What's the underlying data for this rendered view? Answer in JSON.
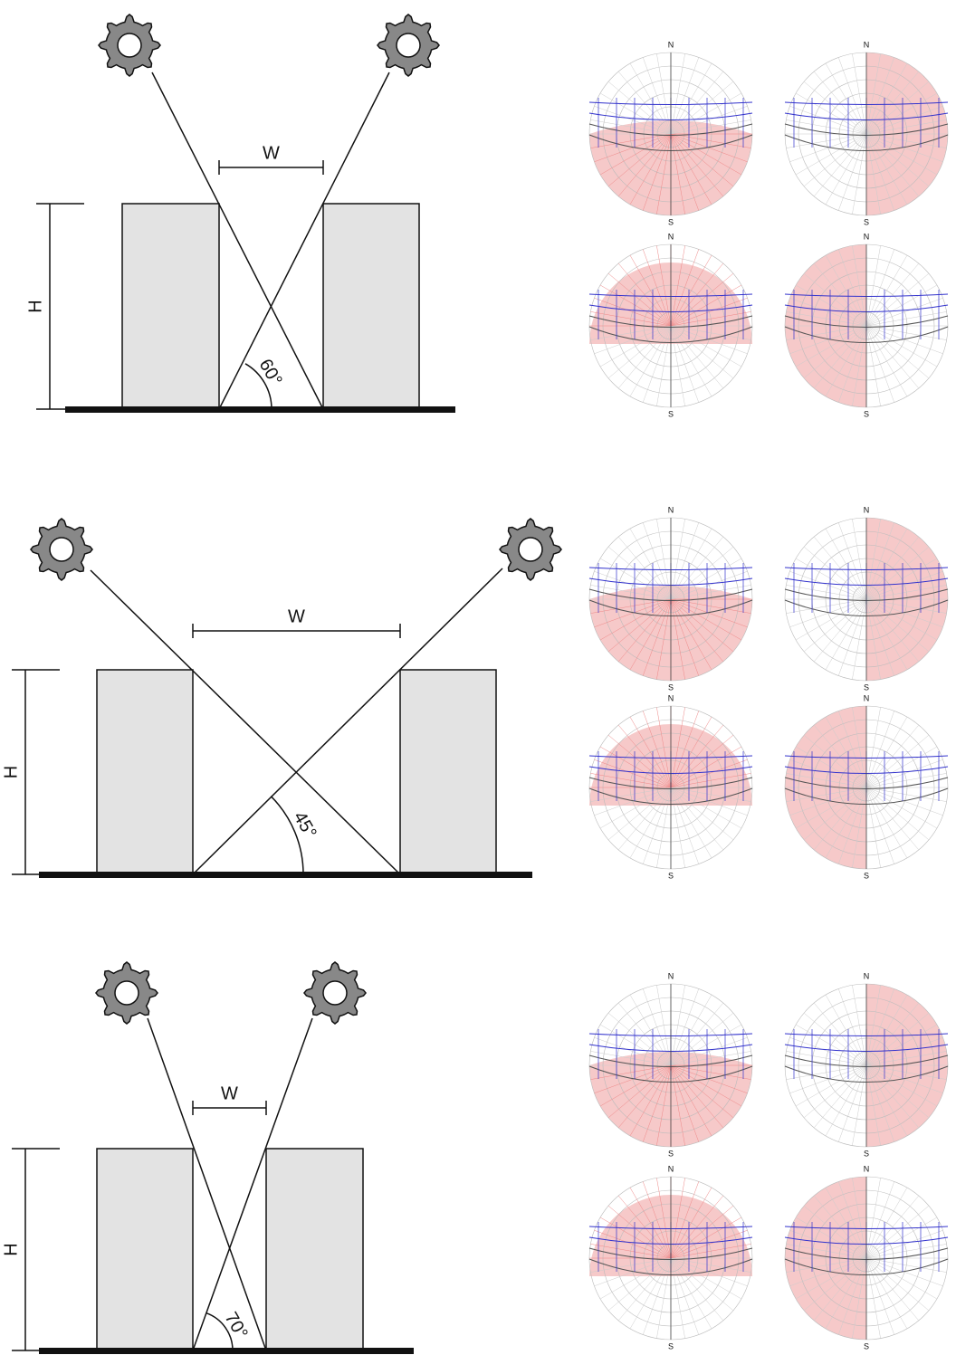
{
  "panels": [
    {
      "width_label": "W",
      "height_label": "H",
      "angle_label": "60°"
    },
    {
      "width_label": "W",
      "height_label": "H",
      "angle_label": "45°"
    },
    {
      "width_label": "W",
      "height_label": "H",
      "angle_label": "70°"
    }
  ],
  "compass": {
    "north": "N",
    "south": "S"
  }
}
